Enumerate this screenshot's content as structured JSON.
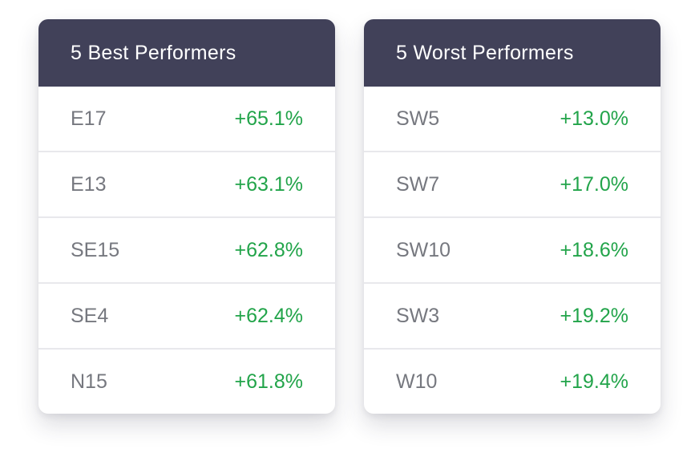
{
  "theme": {
    "header_bg": "#414159",
    "positive_color": "#22a44a"
  },
  "best": {
    "title": "5 Best Performers",
    "rows": [
      {
        "area": "E17",
        "change": "+65.1%"
      },
      {
        "area": "E13",
        "change": "+63.1%"
      },
      {
        "area": "SE15",
        "change": "+62.8%"
      },
      {
        "area": "SE4",
        "change": "+62.4%"
      },
      {
        "area": "N15",
        "change": "+61.8%"
      }
    ]
  },
  "worst": {
    "title": "5 Worst Performers",
    "rows": [
      {
        "area": "SW5",
        "change": "+13.0%"
      },
      {
        "area": "SW7",
        "change": "+17.0%"
      },
      {
        "area": "SW10",
        "change": "+18.6%"
      },
      {
        "area": "SW3",
        "change": "+19.2%"
      },
      {
        "area": "W10",
        "change": "+19.4%"
      }
    ]
  }
}
